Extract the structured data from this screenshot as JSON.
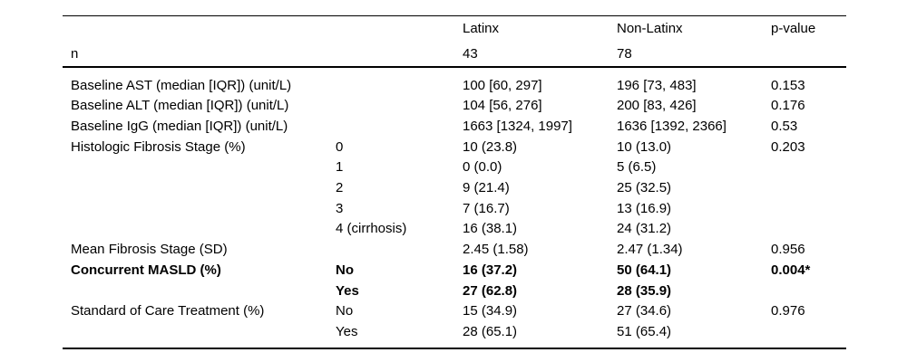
{
  "colors": {
    "background": "#ffffff",
    "text": "#000000",
    "rule": "#000000"
  },
  "table": {
    "header": {
      "latinx": "Latinx",
      "non_latinx": "Non-Latinx",
      "p_value": "p-value"
    },
    "n_row": {
      "label": "n",
      "latinx": "43",
      "non_latinx": "78"
    },
    "rows": [
      {
        "label": "Baseline AST (median [IQR]) (unit/L)",
        "sub": "",
        "latinx": "100 [60, 297]",
        "non_latinx": "196 [73, 483]",
        "p": "0.153",
        "bold": false
      },
      {
        "label": "Baseline ALT (median [IQR]) (unit/L)",
        "sub": "",
        "latinx": "104 [56, 276]",
        "non_latinx": "200 [83, 426]",
        "p": "0.176",
        "bold": false
      },
      {
        "label": "Baseline IgG (median [IQR]) (unit/L)",
        "sub": "",
        "latinx": "1663 [1324, 1997]",
        "non_latinx": "1636 [1392, 2366]",
        "p": "0.53",
        "bold": false
      },
      {
        "label": "Histologic Fibrosis Stage (%)",
        "sub": "0",
        "latinx": "10 (23.8)",
        "non_latinx": "10 (13.0)",
        "p": "0.203",
        "bold": false
      },
      {
        "label": "",
        "sub": "1",
        "latinx": "0 (0.0)",
        "non_latinx": "5 (6.5)",
        "p": "",
        "bold": false
      },
      {
        "label": "",
        "sub": "2",
        "latinx": "9 (21.4)",
        "non_latinx": "25 (32.5)",
        "p": "",
        "bold": false
      },
      {
        "label": "",
        "sub": "3",
        "latinx": "7 (16.7)",
        "non_latinx": "13 (16.9)",
        "p": "",
        "bold": false
      },
      {
        "label": "",
        "sub": "4 (cirrhosis)",
        "latinx": "16 (38.1)",
        "non_latinx": "24 (31.2)",
        "p": "",
        "bold": false
      },
      {
        "label": "Mean Fibrosis Stage (SD)",
        "sub": "",
        "latinx": "2.45 (1.58)",
        "non_latinx": "2.47 (1.34)",
        "p": "0.956",
        "bold": false
      },
      {
        "label": "Concurrent MASLD (%)",
        "sub": "No",
        "latinx": "16 (37.2)",
        "non_latinx": "50 (64.1)",
        "p": "0.004*",
        "bold": true
      },
      {
        "label": "",
        "sub": "Yes",
        "latinx": "27 (62.8)",
        "non_latinx": "28 (35.9)",
        "p": "",
        "bold": true
      },
      {
        "label": "Standard of Care Treatment (%)",
        "sub": "No",
        "latinx": "15 (34.9)",
        "non_latinx": "27 (34.6)",
        "p": "0.976",
        "bold": false
      },
      {
        "label": "",
        "sub": "Yes",
        "latinx": "28 (65.1)",
        "non_latinx": "51 (65.4)",
        "p": "",
        "bold": false
      }
    ]
  }
}
